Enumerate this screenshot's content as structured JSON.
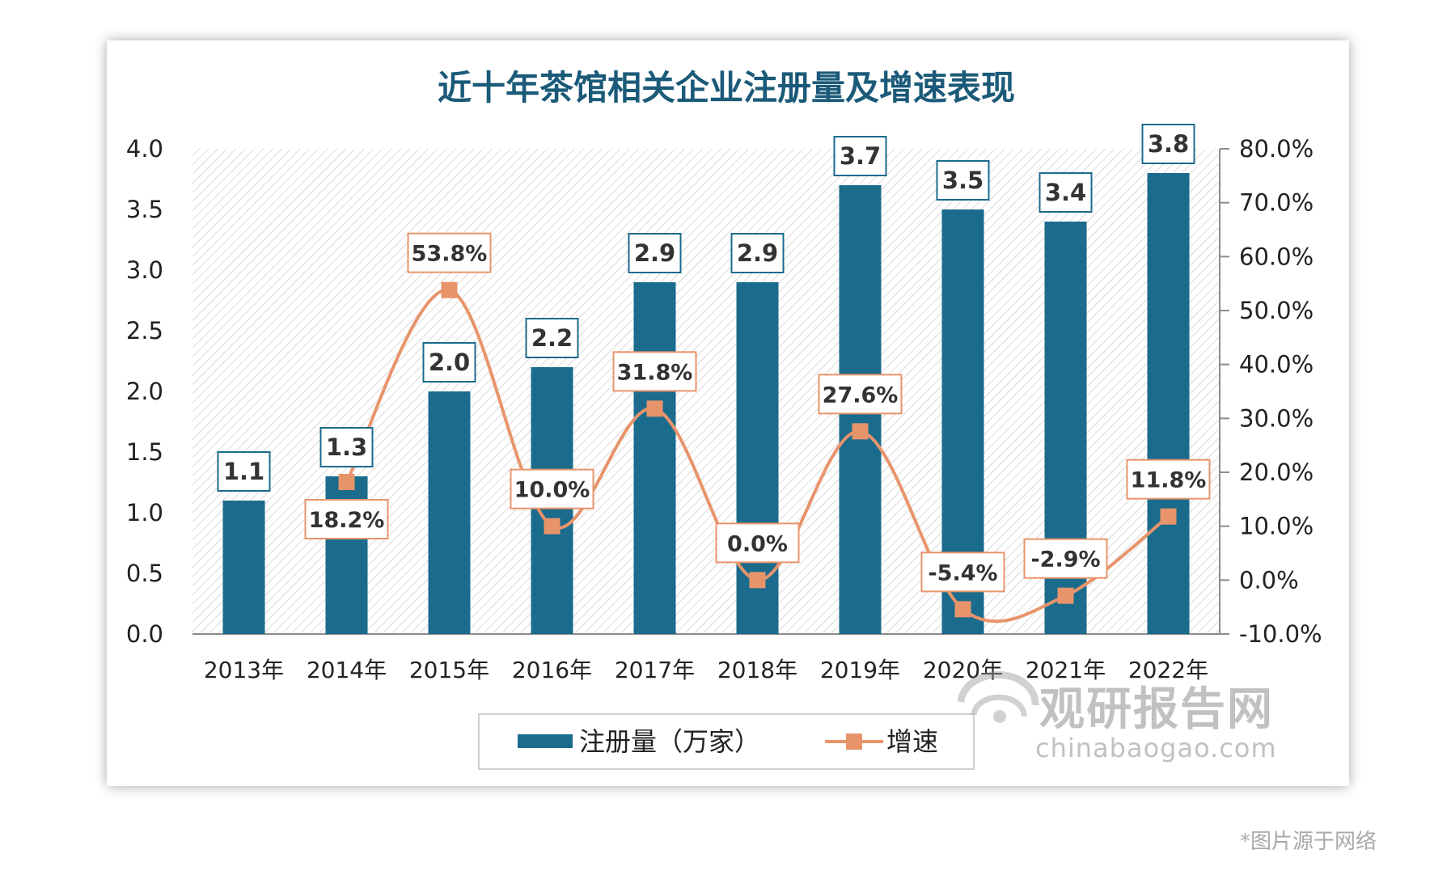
{
  "chart_data": {
    "type": "bar",
    "title": "近十年茶馆相关企业注册量及增速表现",
    "categories": [
      "2013年",
      "2014年",
      "2015年",
      "2016年",
      "2017年",
      "2018年",
      "2019年",
      "2020年",
      "2021年",
      "2022年"
    ],
    "series": [
      {
        "name": "注册量（万家）",
        "type": "bar",
        "axis": "left",
        "color": "#1b6b8c",
        "values": [
          1.1,
          1.3,
          2.0,
          2.2,
          2.9,
          2.9,
          3.7,
          3.5,
          3.4,
          3.8
        ],
        "labels": [
          "1.1",
          "1.3",
          "2.0",
          "2.2",
          "2.9",
          "2.9",
          "3.7",
          "3.5",
          "3.4",
          "3.8"
        ]
      },
      {
        "name": "增速",
        "type": "line",
        "axis": "right",
        "color": "#e8946b",
        "values": [
          null,
          18.2,
          53.8,
          10.0,
          31.8,
          0.0,
          27.6,
          -5.4,
          -2.9,
          11.8
        ],
        "labels": [
          "",
          "18.2%",
          "53.8%",
          "10.0%",
          "31.8%",
          "0.0%",
          "27.6%",
          "-5.4%",
          "-2.9%",
          "11.8%"
        ]
      }
    ],
    "y_left": {
      "min": 0,
      "max": 4.0,
      "ticks": [
        "0.0",
        "0.5",
        "1.0",
        "1.5",
        "2.0",
        "2.5",
        "3.0",
        "3.5",
        "4.0"
      ]
    },
    "y_right": {
      "min": -10,
      "max": 80,
      "ticks": [
        "-10.0%",
        "0.0%",
        "10.0%",
        "20.0%",
        "30.0%",
        "40.0%",
        "50.0%",
        "60.0%",
        "70.0%",
        "80.0%"
      ]
    },
    "legend": {
      "placement": "bottom",
      "items": [
        "注册量（万家）",
        "增速"
      ]
    },
    "grid": false
  },
  "watermark": {
    "brand": "观研报告网",
    "domain": "chinabaogao.com"
  },
  "source_note": "*图片源于网络",
  "colors": {
    "bar": "#1b6b8c",
    "line": "#e8946b",
    "title": "#1b5a78",
    "text": "#222222"
  }
}
